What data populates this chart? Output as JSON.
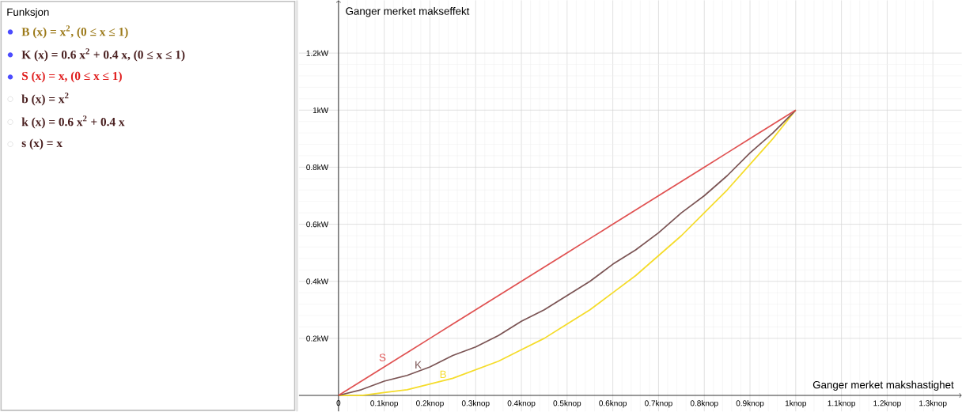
{
  "chart_data": {
    "type": "line",
    "xlabel": "Ganger merket makshastighet",
    "ylabel": "Ganger merket makseffekt",
    "x": [
      0,
      0.05,
      0.1,
      0.15,
      0.2,
      0.25,
      0.3,
      0.35,
      0.4,
      0.45,
      0.5,
      0.55,
      0.6,
      0.65,
      0.7,
      0.75,
      0.8,
      0.85,
      0.9,
      0.95,
      1
    ],
    "series": [
      {
        "name": "B",
        "color": "#f5dc2a",
        "values": [
          0,
          0,
          0.01,
          0.02,
          0.04,
          0.06,
          0.09,
          0.12,
          0.16,
          0.2,
          0.25,
          0.3,
          0.36,
          0.42,
          0.49,
          0.56,
          0.64,
          0.72,
          0.81,
          0.9,
          1
        ]
      },
      {
        "name": "K",
        "color": "#7b5454",
        "values": [
          0,
          0.02,
          0.05,
          0.07,
          0.1,
          0.14,
          0.17,
          0.21,
          0.26,
          0.3,
          0.35,
          0.4,
          0.46,
          0.51,
          0.57,
          0.64,
          0.7,
          0.77,
          0.85,
          0.92,
          1
        ]
      },
      {
        "name": "S",
        "color": "#e05252",
        "values": [
          0,
          0.05,
          0.1,
          0.15,
          0.2,
          0.25,
          0.3,
          0.35,
          0.4,
          0.45,
          0.5,
          0.55,
          0.6,
          0.65,
          0.7,
          0.75,
          0.8,
          0.85,
          0.9,
          0.95,
          1
        ]
      }
    ],
    "xlim": [
      -0.0865,
      1.363
    ],
    "ylim": [
      -0.056,
      1.385
    ],
    "xticks": [
      {
        "value": 0,
        "label": "0"
      },
      {
        "value": 0.1,
        "label": "0.1knop"
      },
      {
        "value": 0.2,
        "label": "0.2knop"
      },
      {
        "value": 0.3,
        "label": "0.3knop"
      },
      {
        "value": 0.4,
        "label": "0.4knop"
      },
      {
        "value": 0.5,
        "label": "0.5knop"
      },
      {
        "value": 0.6,
        "label": "0.6knop"
      },
      {
        "value": 0.7,
        "label": "0.7knop"
      },
      {
        "value": 0.8,
        "label": "0.8knop"
      },
      {
        "value": 0.9,
        "label": "0.9knop"
      },
      {
        "value": 1,
        "label": "1knop"
      },
      {
        "value": 1.1,
        "label": "1.1knop"
      },
      {
        "value": 1.2,
        "label": "1.2knop"
      },
      {
        "value": 1.3,
        "label": "1.3knop"
      }
    ],
    "yticks": [
      {
        "value": 0.2,
        "label": "0.2kW"
      },
      {
        "value": 0.4,
        "label": "0.4kW"
      },
      {
        "value": 0.6,
        "label": "0.6kW"
      },
      {
        "value": 0.8,
        "label": "0.8kW"
      },
      {
        "value": 1,
        "label": "1kW"
      },
      {
        "value": 1.2,
        "label": "1.2kW"
      }
    ],
    "grid": true,
    "marker": "none",
    "line_style": "solid",
    "annotations": [
      "Funksjon",
      "B (x) = x$^{2}$,    (0 ≤ x ≤ 1)",
      "K (x) = 0.6 x$^{2}$ + 0.4 x,    (0 ≤ x ≤ 1)",
      "S (x) = x,    (0 ≤ x ≤ 1)",
      "b (x) = x$^{2}$",
      "k (x) = 0.6 x$^{2}$ + 0.4 x",
      "s (x) = x"
    ]
  }
}
